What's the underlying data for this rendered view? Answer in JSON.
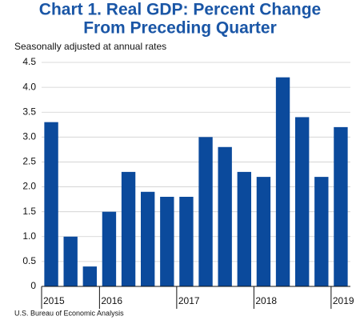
{
  "chart_data": {
    "type": "bar",
    "title_lines": [
      "Chart 1. Real GDP: Percent Change",
      "From Preceding Quarter"
    ],
    "subtitle": "Seasonally adjusted at annual rates",
    "source": "U.S. Bureau of Economic Analysis",
    "categories": [
      "2015",
      null,
      null,
      "2016",
      null,
      null,
      null,
      "2017",
      null,
      null,
      null,
      "2018",
      null,
      null,
      null,
      "2019"
    ],
    "values": [
      3.3,
      1.0,
      0.4,
      1.5,
      2.3,
      1.9,
      1.8,
      1.8,
      3.0,
      2.8,
      2.3,
      2.2,
      4.2,
      3.4,
      2.2,
      3.2
    ],
    "color": "#0b4a9c",
    "ylim": [
      0,
      4.5
    ],
    "yticks": [
      0,
      0.5,
      {
        "value": 1,
        "label": "1.0"
      },
      1.5,
      {
        "value": 2,
        "label": "2.0"
      },
      2.5,
      {
        "value": 3,
        "label": "3.0"
      },
      3.5,
      {
        "value": 4,
        "label": "4.0"
      },
      4.5
    ],
    "grid": true
  }
}
